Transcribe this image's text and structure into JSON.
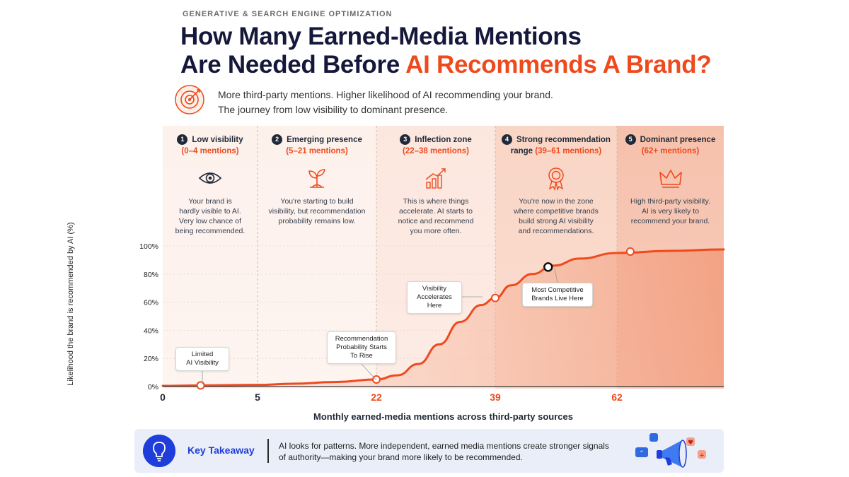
{
  "eyebrow": "GENERATIVE & SEARCH ENGINE OPTIMIZATION",
  "title": {
    "line1": "How Many Earned-Media Mentions",
    "line2_plain": "Are Needed Before ",
    "line2_accent": "AI Recommends A Brand?"
  },
  "subtitle": {
    "line1": "More third-party mentions. Higher likelihood of AI recommending your brand.",
    "line2": "The journey from low visibility to dominant presence."
  },
  "stages": [
    {
      "num": "1",
      "name": "Low visibility",
      "range": "(0–4 mentions)",
      "icon": "eye-icon",
      "desc": [
        "Your brand is",
        "hardly visible to AI.",
        "Very low chance of",
        "being recommended."
      ]
    },
    {
      "num": "2",
      "name": "Emerging presence",
      "range": "(5–21 mentions)",
      "icon": "sprout-icon",
      "desc": [
        "You're starting to build",
        "visibility, but recommendation",
        "probability remains low."
      ]
    },
    {
      "num": "3",
      "name": "Inflection zone",
      "range": "(22–38 mentions)",
      "icon": "growth-chart-icon",
      "desc": [
        "This is where things",
        "accelerate. AI starts to",
        "notice and recommend",
        "you more often."
      ]
    },
    {
      "num": "4",
      "name": "Strong recommendation range",
      "range": "(39–61 mentions)",
      "icon": "award-ribbon-icon",
      "desc": [
        "You're now in the zone",
        "where competitive brands",
        "build strong AI visibility",
        "and recommendations."
      ]
    },
    {
      "num": "5",
      "name": "Dominant presence",
      "range": "(62+ mentions)",
      "icon": "crown-icon",
      "desc": [
        "High third-party visibility.",
        "AI is very likely to",
        "recommend your brand."
      ]
    }
  ],
  "chart_data": {
    "type": "area",
    "xlabel": "Monthly earned-media mentions across third-party sources",
    "ylabel": "Likelihood the brand is recommended by AI (%)",
    "x_ticks": [
      {
        "value": 0,
        "label": "0",
        "highlight": false
      },
      {
        "value": 5,
        "label": "5",
        "highlight": false
      },
      {
        "value": 22,
        "label": "22",
        "highlight": true
      },
      {
        "value": 39,
        "label": "39",
        "highlight": true
      },
      {
        "value": 62,
        "label": "62",
        "highlight": true
      }
    ],
    "y_ticks": [
      0,
      20,
      40,
      60,
      80,
      100
    ],
    "y_tick_labels": [
      "0%",
      "20%",
      "40%",
      "60%",
      "80%",
      "100%"
    ],
    "xlim": [
      0,
      70
    ],
    "ylim": [
      0,
      100
    ],
    "band_edges": [
      0,
      5,
      22,
      39,
      62,
      70
    ],
    "band_colors": [
      "#fdf1ec",
      "#fdf1ec",
      "#fce7de",
      "#f9d5c5",
      "#f6c1ac"
    ],
    "line_color": "#ee4a1d",
    "series": [
      {
        "points": [
          [
            0,
            0.5
          ],
          [
            2,
            0.8
          ],
          [
            5,
            1.2
          ],
          [
            10,
            2
          ],
          [
            16,
            3.2
          ],
          [
            22,
            5
          ],
          [
            25,
            8
          ],
          [
            28,
            16
          ],
          [
            31,
            30
          ],
          [
            34,
            46
          ],
          [
            37,
            58
          ],
          [
            39,
            63
          ],
          [
            42,
            72
          ],
          [
            46,
            80
          ],
          [
            50,
            86
          ],
          [
            55,
            91
          ],
          [
            62,
            95
          ],
          [
            66,
            96.5
          ],
          [
            70,
            97.5
          ]
        ]
      }
    ],
    "markers": [
      {
        "x": 2,
        "y": 0.8,
        "style": "ring"
      },
      {
        "x": 22,
        "y": 5,
        "style": "ring"
      },
      {
        "x": 39,
        "y": 63,
        "style": "ring"
      },
      {
        "x": 49,
        "y": 85,
        "style": "dark"
      },
      {
        "x": 63,
        "y": 96,
        "style": "ring"
      }
    ],
    "annotations": [
      {
        "lines": [
          "Limited",
          "AI Visibility"
        ]
      },
      {
        "lines": [
          "Recommendation",
          "Probability Starts",
          "To Rise"
        ]
      },
      {
        "lines": [
          "Visibility",
          "Accelerates",
          "Here"
        ]
      },
      {
        "lines": [
          "Most Competitive",
          "Brands Live Here"
        ]
      }
    ]
  },
  "takeaway": {
    "label": "Key Takeaway",
    "text": "AI looks for patterns. More independent, earned media mentions create stronger signals of authority—making your brand more likely to be recommended."
  }
}
